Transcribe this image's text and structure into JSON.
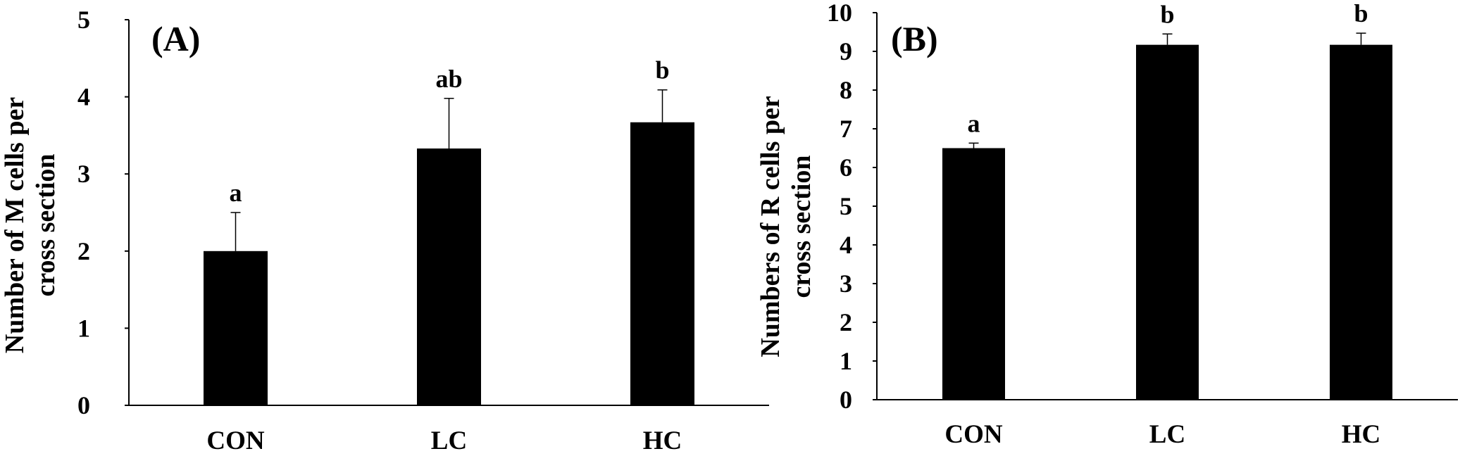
{
  "chart_data": [
    {
      "type": "bar",
      "panel_label": "(A)",
      "ylabel_lines": [
        "Number of M cells per",
        "cross section"
      ],
      "categories": [
        "CON",
        "LC",
        "HC"
      ],
      "values": [
        2.0,
        3.33,
        3.67
      ],
      "errors": [
        0.5,
        0.65,
        0.42
      ],
      "significance": [
        "a",
        "ab",
        "b"
      ],
      "ylim": [
        0,
        5
      ],
      "yticks": [
        "0",
        "1",
        "2",
        "3",
        "4",
        "5"
      ],
      "grid": false,
      "bar_color": "#000000"
    },
    {
      "type": "bar",
      "panel_label": "(B)",
      "ylabel_lines": [
        "Numbers of R cells per",
        "cross section"
      ],
      "categories": [
        "CON",
        "LC",
        "HC"
      ],
      "values": [
        6.5,
        9.17,
        9.17
      ],
      "errors": [
        0.13,
        0.28,
        0.3
      ],
      "significance": [
        "a",
        "b",
        "b"
      ],
      "ylim": [
        0,
        10
      ],
      "yticks": [
        "0",
        "1",
        "2",
        "3",
        "4",
        "5",
        "6",
        "7",
        "8",
        "9",
        "10"
      ],
      "grid": false,
      "bar_color": "#000000"
    }
  ]
}
